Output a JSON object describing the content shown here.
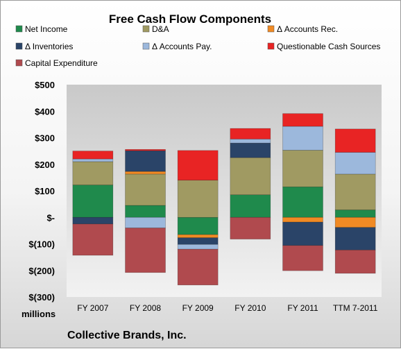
{
  "chart_data": {
    "type": "bar",
    "stacked": true,
    "title": "Free Cash Flow Components",
    "categories": [
      "FY 2007",
      "FY 2008",
      "FY 2009",
      "FY 2010",
      "FY 2011",
      "TTM 7-2011"
    ],
    "ylim": [
      -300,
      500
    ],
    "yticks": [
      500,
      400,
      300,
      200,
      100,
      0,
      -100,
      -200,
      -300
    ],
    "ytick_labels": [
      "$500",
      "$400",
      "$300",
      "$200",
      "$100",
      "$-",
      "$(100)",
      "$(200)",
      "$(300)"
    ],
    "unit_label": "millions",
    "grid": false,
    "legend_position": "top",
    "series": [
      {
        "name": "Net Income",
        "color": "#1f8a4c",
        "values": [
          122,
          45,
          -65,
          85,
          115,
          28
        ]
      },
      {
        "name": "D&A",
        "color": "#a09a62",
        "values": [
          88,
          118,
          140,
          140,
          138,
          135
        ]
      },
      {
        "name": "Δ Accounts Rec.",
        "color": "#f08a24",
        "values": [
          0,
          10,
          -12,
          0,
          -18,
          -38
        ]
      },
      {
        "name": "Δ Inventories",
        "color": "#2a4468",
        "values": [
          -25,
          78,
          -25,
          55,
          -88,
          -85
        ]
      },
      {
        "name": "Δ Accounts Pay.",
        "color": "#9cb8dc",
        "values": [
          10,
          -40,
          -18,
          15,
          90,
          82
        ]
      },
      {
        "name": "Questionable Cash Sources",
        "color": "#e82424",
        "values": [
          30,
          5,
          112,
          40,
          48,
          88
        ]
      },
      {
        "name": "Capital Expenditure",
        "color": "#b04a4e",
        "values": [
          -118,
          -168,
          -135,
          -82,
          -95,
          -88
        ]
      }
    ]
  },
  "footer": {
    "company": "Collective Brands, Inc."
  }
}
